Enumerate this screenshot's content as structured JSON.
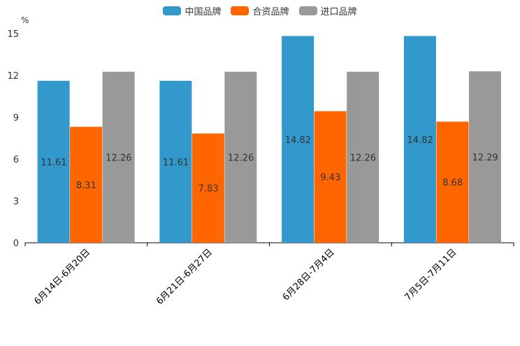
{
  "chart_data": {
    "type": "bar",
    "unit_label": "%",
    "categories": [
      "6月14日-6月20日",
      "6月21日-6月27日",
      "6月28日-7月4日",
      "7月5日-7月11日"
    ],
    "series": [
      {
        "name": "中国品牌",
        "color": "#3399cc",
        "values": [
          11.61,
          11.61,
          14.82,
          14.82
        ]
      },
      {
        "name": "合资品牌",
        "color": "#ff6600",
        "values": [
          8.31,
          7.83,
          9.43,
          8.68
        ]
      },
      {
        "name": "进口品牌",
        "color": "#999999",
        "values": [
          12.26,
          12.26,
          12.26,
          12.29
        ]
      }
    ],
    "ylim": [
      0,
      15
    ],
    "yticks": [
      0,
      3,
      6,
      9,
      12,
      15
    ],
    "legend_position": "top-center"
  }
}
